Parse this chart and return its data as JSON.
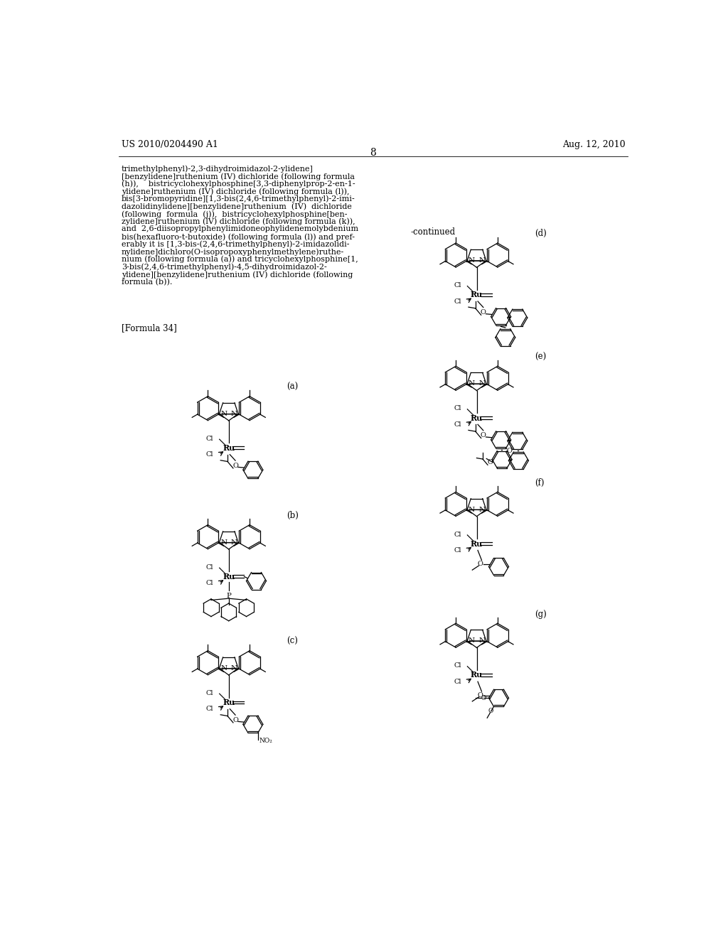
{
  "page_number": "8",
  "patent_number": "US 2010/0204490 A1",
  "patent_date": "Aug. 12, 2010",
  "background_color": "#ffffff",
  "left_text_lines": [
    "trimethylphenyl)-2,3-dihydroimidazol-2-ylidene]",
    "[benzylidene]ruthenium (IV) dichloride (following formula",
    "(h)),    bistricyclohexylphosphine[3,3-diphenylprop-2-en-1-",
    "ylidene]ruthenium (IV) dichloride (following formula (l)),",
    "bis[3-bromopyridine][1,3-bis(2,4,6-trimethylphenyl)-2-imi-",
    "dazolidinylidene][benzylidene]ruthenium  (IV)  dichloride",
    "(following  formula  (j)),  bistricyclohexylphosphine[ben-",
    "zylidene]ruthenium (lV) dichloride (following formula (k)),",
    "and  2,6-diisopropylphenylimidoneophylidenemolybdenium",
    "bis(hexafluoro-t-butoxide) (following formula (l)) and pref-",
    "erably it is [1,3-bis-(2,4,6-trimethylphenyl)-2-imidazolidi-",
    "nylidene]dichloro(O-isopropoxyphenylmethylene)ruthe-",
    "nium (following formula (a)) and tricyclohexylphosphine[1,",
    "3-bis(2,4,6-trimethylphenyl)-4,5-dihydroimidazol-2-",
    "ylidene][benzylidene]ruthenium (IV) dichloride (following",
    "formula (b))."
  ],
  "formula_label": "[Formula 34]",
  "continued_text": "-continued",
  "figsize": [
    10.24,
    13.2
  ],
  "dpi": 100
}
